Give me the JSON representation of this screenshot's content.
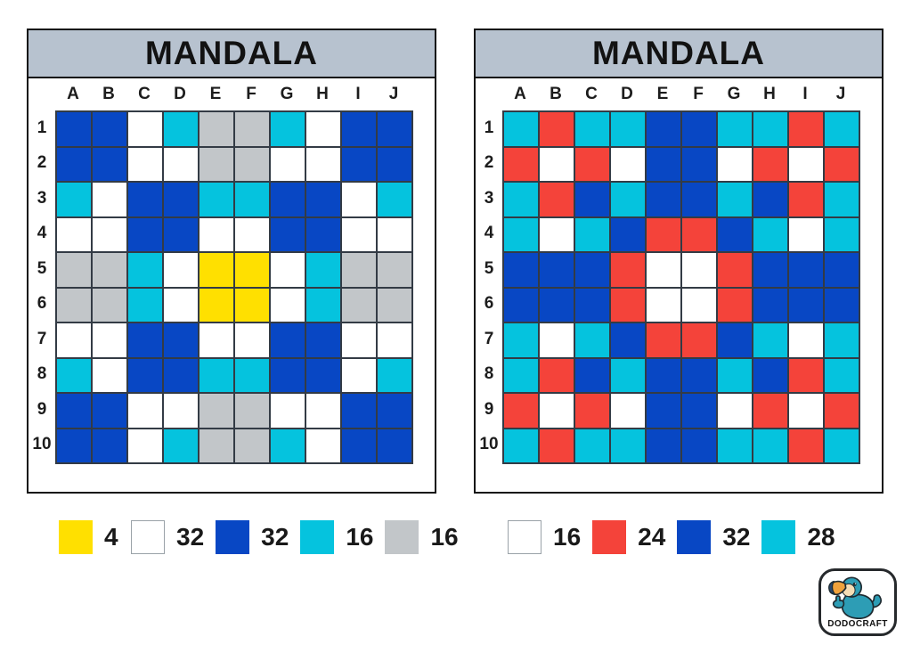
{
  "page": {
    "background": "#ffffff"
  },
  "colors": {
    "title_bar": "#b7c2cf",
    "card_border": "#121212",
    "grid_line": "#333b45"
  },
  "palette": {
    "B": "#0847c4",
    "C": "#05c3de",
    "G": "#c2c6c9",
    "Y": "#ffe000",
    "W": "#ffffff",
    "R": "#f4433a"
  },
  "cards": [
    {
      "title": "MANDALA",
      "columns": [
        "A",
        "B",
        "C",
        "D",
        "E",
        "F",
        "G",
        "H",
        "I",
        "J"
      ],
      "rows": [
        "1",
        "2",
        "3",
        "4",
        "5",
        "6",
        "7",
        "8",
        "9",
        "10"
      ],
      "cells": [
        "BBWCGGCWBB",
        "BBWWGGWWBB",
        "CWBBCCBBWC",
        "WWBBWWBBWW",
        "GGCWYYWCGG",
        "GGCWYYWCGG",
        "WWBBWWBBWW",
        "CWBBCCBBWC",
        "BBWWGGWWBB",
        "BBWCGGCWBB"
      ],
      "legend": [
        {
          "color_name": "yellow",
          "color": "#ffe000",
          "count": "4"
        },
        {
          "color_name": "white",
          "color": "#ffffff",
          "count": "32"
        },
        {
          "color_name": "blue",
          "color": "#0847c4",
          "count": "32"
        },
        {
          "color_name": "cyan",
          "color": "#05c3de",
          "count": "16"
        },
        {
          "color_name": "gray",
          "color": "#c2c6c9",
          "count": "16"
        }
      ]
    },
    {
      "title": "MANDALA",
      "columns": [
        "A",
        "B",
        "C",
        "D",
        "E",
        "F",
        "G",
        "H",
        "I",
        "J"
      ],
      "rows": [
        "1",
        "2",
        "3",
        "4",
        "5",
        "6",
        "7",
        "8",
        "9",
        "10"
      ],
      "cells": [
        "CRCCBBCCRC",
        "RWRWBBWRWR",
        "CRBCBBCBRC",
        "CWCBRRBCWC",
        "BBBRWWRBBB",
        "BBBRWWRBBB",
        "CWCBRRBCWC",
        "CRBCBBCBRC",
        "RWRWBBWRWR",
        "CRCCBBCCRC"
      ],
      "legend": [
        {
          "color_name": "white",
          "color": "#ffffff",
          "count": "16"
        },
        {
          "color_name": "red",
          "color": "#f4433a",
          "count": "24"
        },
        {
          "color_name": "blue",
          "color": "#0847c4",
          "count": "32"
        },
        {
          "color_name": "cyan",
          "color": "#05c3de",
          "count": "28"
        }
      ]
    }
  ],
  "logo": {
    "brand": "DODOCRAFT",
    "icon": "dodo-bird-icon"
  }
}
